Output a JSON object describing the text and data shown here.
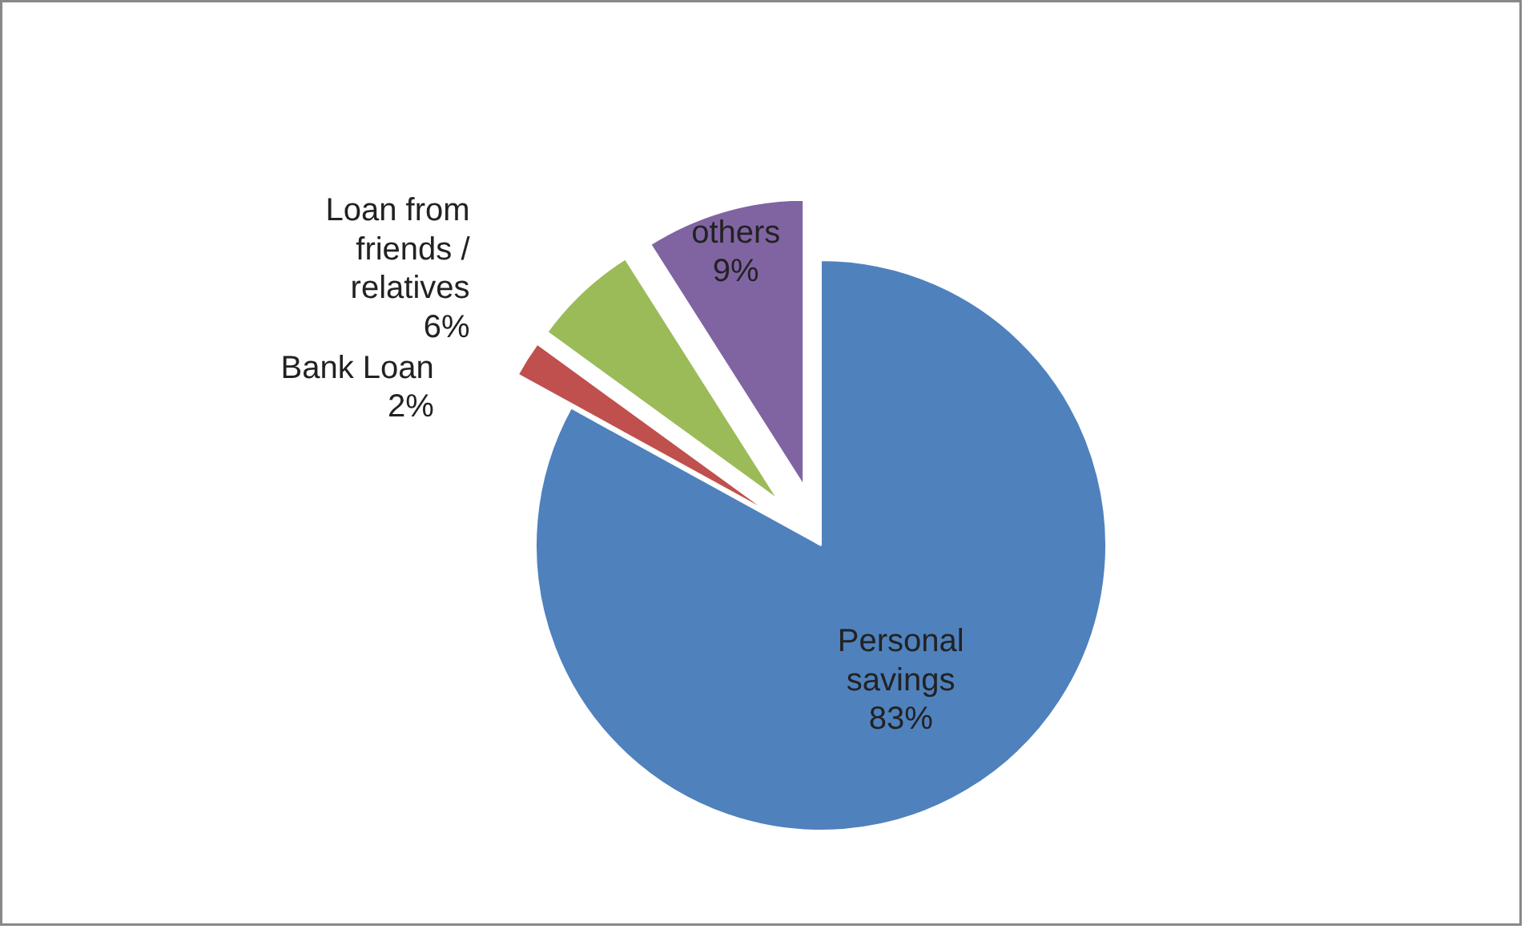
{
  "chart_data": {
    "type": "pie",
    "categories": [
      "Personal savings",
      "Bank Loan",
      "Loan from friends / relatives",
      "others"
    ],
    "values": [
      83,
      2,
      6,
      9
    ],
    "value_labels": [
      "83%",
      "2%",
      "6%",
      "9%"
    ],
    "colors": [
      "#4f81bd",
      "#c0504d",
      "#9bbb59",
      "#8064a2"
    ],
    "legend": false
  }
}
